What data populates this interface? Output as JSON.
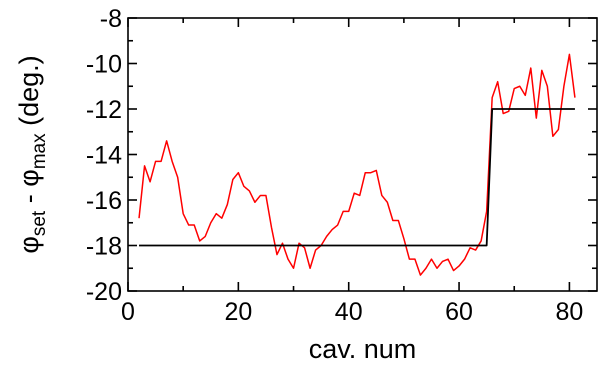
{
  "chart_data": {
    "type": "line",
    "xlabel": "cav. num",
    "ylabel": {
      "pre": "φ",
      "sub1": "set",
      "mid": " - φ",
      "sub2": "max",
      "post": " (deg.)"
    },
    "xlim": [
      0,
      85
    ],
    "ylim": [
      -20,
      -8
    ],
    "x_ticks": [
      0,
      20,
      40,
      60,
      80
    ],
    "y_ticks": [
      -20,
      -18,
      -16,
      -14,
      -12,
      -10,
      -8
    ],
    "grid": false,
    "series": [
      {
        "color": "#ff0000",
        "x": [
          2,
          3,
          4,
          5,
          6,
          7,
          8,
          9,
          10,
          11,
          12,
          13,
          14,
          15,
          16,
          17,
          18,
          19,
          20,
          21,
          22,
          23,
          24,
          25,
          26,
          27,
          28,
          29,
          30,
          31,
          32,
          33,
          34,
          35,
          36,
          37,
          38,
          39,
          40,
          41,
          42,
          43,
          44,
          45,
          46,
          47,
          48,
          49,
          50,
          51,
          52,
          53,
          54,
          55,
          56,
          57,
          58,
          59,
          60,
          61,
          62,
          63,
          64,
          65,
          66,
          67,
          68,
          69,
          70,
          71,
          72,
          73,
          74,
          75,
          76,
          77,
          78,
          79,
          80,
          81
        ],
        "y": [
          -16.8,
          -14.5,
          -15.2,
          -14.3,
          -14.3,
          -13.4,
          -14.3,
          -15.0,
          -16.6,
          -17.1,
          -17.1,
          -17.8,
          -17.6,
          -17.0,
          -16.6,
          -16.8,
          -16.2,
          -15.1,
          -14.8,
          -15.4,
          -15.6,
          -16.1,
          -15.8,
          -15.8,
          -17.2,
          -18.4,
          -17.9,
          -18.6,
          -19.0,
          -17.9,
          -18.1,
          -19.0,
          -18.2,
          -18.0,
          -17.6,
          -17.3,
          -17.1,
          -16.5,
          -16.5,
          -15.7,
          -15.8,
          -14.8,
          -14.8,
          -14.7,
          -15.8,
          -16.1,
          -16.9,
          -16.9,
          -17.7,
          -18.6,
          -18.6,
          -19.3,
          -19.0,
          -18.6,
          -19.0,
          -18.7,
          -18.6,
          -19.1,
          -18.9,
          -18.6,
          -18.1,
          -18.2,
          -17.8,
          -16.5,
          -11.5,
          -10.8,
          -12.2,
          -12.1,
          -11.1,
          -11.0,
          -11.4,
          -10.2,
          -12.4,
          -10.3,
          -11.0,
          -13.2,
          -12.9,
          -11.0,
          -9.6,
          -11.5
        ]
      },
      {
        "color": "#000000",
        "x": [
          2,
          65,
          66,
          81
        ],
        "y": [
          -18.0,
          -18.0,
          -12.0,
          -12.0
        ]
      }
    ]
  }
}
